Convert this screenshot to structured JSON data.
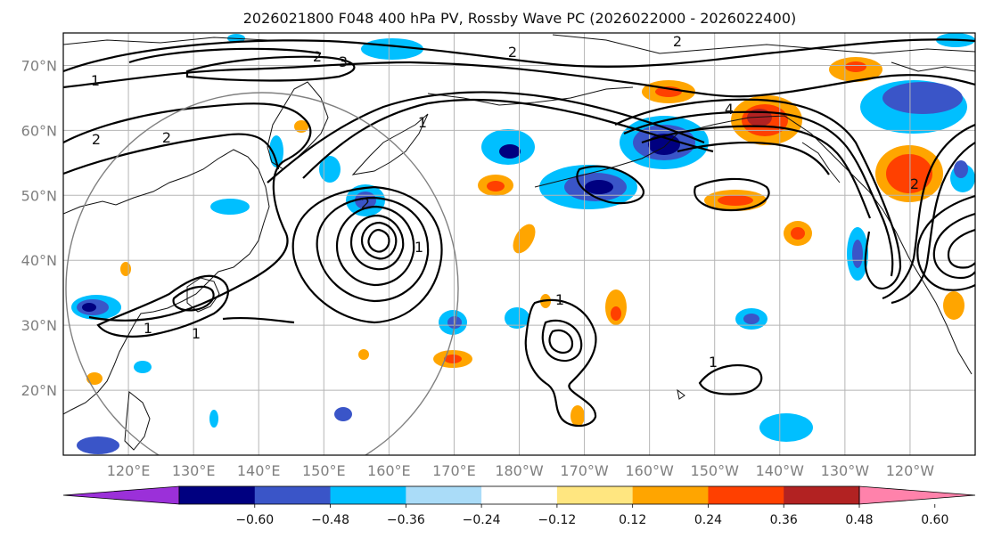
{
  "title": "2026021800 F048 400 hPa PV, Rossby Wave PC (2026022000 - 2026022400)",
  "map": {
    "lat_labels": [
      "70°N",
      "60°N",
      "50°N",
      "40°N",
      "30°N",
      "20°N"
    ],
    "lat_values": [
      70,
      60,
      50,
      40,
      30,
      20
    ],
    "lon_labels": [
      "120°E",
      "130°E",
      "140°E",
      "150°E",
      "160°E",
      "170°E",
      "180°W",
      "170°W",
      "160°W",
      "150°W",
      "140°W",
      "130°W",
      "120°W"
    ],
    "lon_values": [
      120,
      130,
      140,
      150,
      160,
      170,
      180,
      190,
      200,
      210,
      220,
      230,
      240
    ],
    "lat_range": [
      10,
      75
    ],
    "lon_range": [
      110,
      250
    ],
    "contour_labels": [
      "1",
      "2",
      "2",
      "3",
      "2",
      "1",
      "2",
      "1",
      "1",
      "1",
      "1",
      "2",
      "2",
      "4",
      "1",
      "2"
    ]
  },
  "colorbar": {
    "ticks": [
      "−0.60",
      "−0.48",
      "−0.36",
      "−0.24",
      "−0.12",
      "0.12",
      "0.24",
      "0.36",
      "0.48",
      "0.60"
    ],
    "colors": [
      "#9b30d9",
      "#000080",
      "#3a55c8",
      "#00bfff",
      "#aadcf8",
      "#ffffff",
      "#ffe680",
      "#ffa500",
      "#ff4000",
      "#b22222",
      "#ff82ab"
    ]
  }
}
